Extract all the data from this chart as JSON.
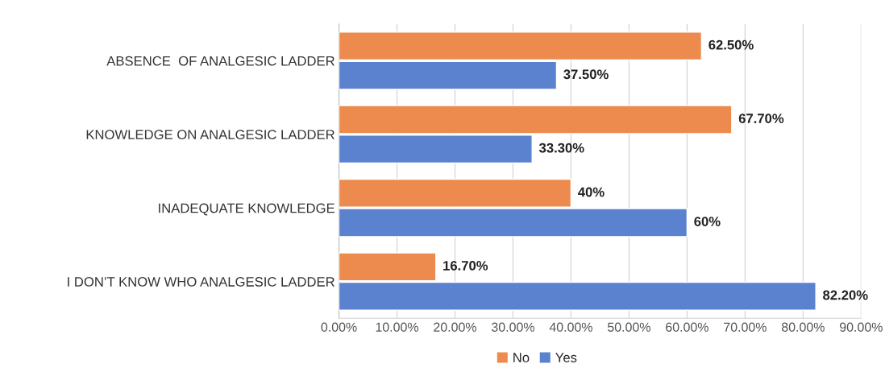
{
  "chart_data": {
    "type": "bar",
    "orientation": "horizontal",
    "categories": [
      "ABSENCE  OF ANALGESIC LADDER",
      "KNOWLEDGE ON ANALGESIC LADDER",
      "INADEQUATE KNOWLEDGE",
      "I DON’T KNOW WHO ANALGESIC LADDER"
    ],
    "series": [
      {
        "name": "No",
        "color": "#ed8b4f",
        "values": [
          62.5,
          67.7,
          40,
          16.7
        ],
        "value_labels": [
          "62.50%",
          "67.70%",
          "40%",
          "16.70%"
        ]
      },
      {
        "name": "Yes",
        "color": "#5b82cf",
        "values": [
          37.5,
          33.3,
          60,
          82.2
        ],
        "value_labels": [
          "37.50%",
          "33.30%",
          "60%",
          "82.20%"
        ]
      }
    ],
    "xlim": [
      0,
      90
    ],
    "xticks": [
      {
        "value": 0,
        "label": "0.00%"
      },
      {
        "value": 10,
        "label": "10.00%"
      },
      {
        "value": 20,
        "label": "20.00%"
      },
      {
        "value": 30,
        "label": "30.00%"
      },
      {
        "value": 40,
        "label": "40.00%"
      },
      {
        "value": 50,
        "label": "50.00%"
      },
      {
        "value": 60,
        "label": "60.00%"
      },
      {
        "value": 70,
        "label": "70.00%"
      },
      {
        "value": 80,
        "label": "80.00%"
      },
      {
        "value": 90,
        "label": "90.00%"
      }
    ],
    "grid": "x",
    "legend": "bottom"
  }
}
